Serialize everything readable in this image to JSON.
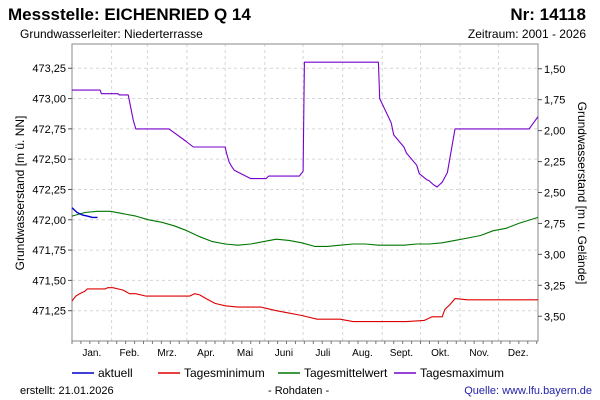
{
  "header": {
    "title": "Messstelle: EICHENRIED Q 14",
    "number": "Nr: 14118",
    "aquifer": "Grundwasserleiter:  Niederterrasse",
    "period": "Zeitraum: 2001 - 2026"
  },
  "footer": {
    "created": "erstellt:  21.01.2026",
    "status": "- Rohdaten -",
    "source": "Quelle: www.lfu.bayern.de"
  },
  "chart_data": {
    "type": "line",
    "ylabel": "Grundwasserstand [m ü. NN]",
    "ylabel_right": "Grundwasserstand [m u. Gelände]",
    "ylim": [
      471.0,
      473.45
    ],
    "ylim_right": [
      3.7,
      1.3
    ],
    "xlim": [
      0,
      365
    ],
    "yticks": [
      "473,25",
      "473,00",
      "472,75",
      "472,50",
      "472,25",
      "472,00",
      "471,75",
      "471,50",
      "471,25"
    ],
    "ytick_values": [
      473.25,
      473.0,
      472.75,
      472.5,
      472.25,
      472.0,
      471.75,
      471.5,
      471.25
    ],
    "yticks_right": [
      "1,50",
      "1,75",
      "2,00",
      "2,25",
      "2,50",
      "2,75",
      "3,00",
      "3,25",
      "3,50"
    ],
    "ytick_right_values": [
      1.5,
      1.75,
      2.0,
      2.25,
      2.5,
      2.75,
      3.0,
      3.25,
      3.5
    ],
    "months": [
      "Jan.",
      "Feb.",
      "Mrz.",
      "Apr.",
      "Mai",
      "Juni",
      "Juli",
      "Aug.",
      "Sept.",
      "Okt.",
      "Nov.",
      "Dez."
    ],
    "month_boundaries": [
      0,
      31,
      59,
      90,
      120,
      151,
      181,
      212,
      243,
      273,
      304,
      334,
      365
    ],
    "grid": true,
    "legend_position": "bottom",
    "series": [
      {
        "name": "aktuell",
        "color": "#0000cc",
        "x": [
          0,
          4,
          8,
          12,
          16,
          20
        ],
        "y": [
          472.1,
          472.06,
          472.04,
          472.03,
          472.02,
          472.02
        ]
      },
      {
        "name": "Tagesminimum",
        "color": "#dd0000",
        "x": [
          0,
          3,
          6,
          10,
          12,
          20,
          26,
          28,
          32,
          40,
          45,
          50,
          58,
          75,
          92,
          96,
          100,
          105,
          112,
          120,
          130,
          140,
          148,
          152,
          160,
          170,
          180,
          192,
          200,
          210,
          220,
          230,
          240,
          250,
          262,
          276,
          282,
          290,
          292,
          296,
          300,
          310,
          330,
          350,
          365
        ],
        "y": [
          471.33,
          471.37,
          471.39,
          471.41,
          471.43,
          471.43,
          471.43,
          471.44,
          471.44,
          471.42,
          471.39,
          471.39,
          471.37,
          471.37,
          471.37,
          471.39,
          471.38,
          471.35,
          471.31,
          471.29,
          471.28,
          471.28,
          471.28,
          471.27,
          471.25,
          471.23,
          471.21,
          471.18,
          471.18,
          471.18,
          471.16,
          471.16,
          471.16,
          471.16,
          471.16,
          471.17,
          471.2,
          471.2,
          471.26,
          471.3,
          471.35,
          471.34,
          471.34,
          471.34,
          471.34
        ]
      },
      {
        "name": "Tagesmittelwert",
        "color": "#007700",
        "x": [
          0,
          10,
          20,
          30,
          40,
          50,
          60,
          70,
          80,
          90,
          100,
          110,
          120,
          130,
          140,
          150,
          160,
          170,
          180,
          190,
          200,
          210,
          220,
          230,
          240,
          250,
          260,
          270,
          280,
          290,
          300,
          310,
          320,
          330,
          340,
          350,
          365
        ],
        "y": [
          472.03,
          472.06,
          472.07,
          472.07,
          472.05,
          472.03,
          472.0,
          471.98,
          471.95,
          471.91,
          471.86,
          471.82,
          471.8,
          471.79,
          471.8,
          471.82,
          471.84,
          471.83,
          471.81,
          471.78,
          471.78,
          471.79,
          471.8,
          471.8,
          471.79,
          471.79,
          471.79,
          471.8,
          471.8,
          471.81,
          471.83,
          471.85,
          471.87,
          471.91,
          471.93,
          471.97,
          472.02
        ]
      },
      {
        "name": "Tagesmaximum",
        "color": "#7700cc",
        "x": [
          0,
          4,
          6,
          20,
          22,
          23,
          29,
          36,
          37,
          44,
          48,
          50,
          58,
          68,
          76,
          89,
          95,
          97,
          98,
          110,
          120,
          121,
          123,
          125,
          127,
          140,
          150,
          152,
          154,
          157,
          161,
          165,
          167,
          170,
          173,
          176,
          178,
          181,
          182,
          184,
          186,
          190,
          194,
          199,
          205,
          210,
          216,
          218,
          220,
          230,
          240,
          241,
          250,
          252,
          260,
          262,
          270,
          272,
          278,
          280,
          283,
          286,
          290,
          294,
          300,
          303,
          305,
          308,
          315,
          320,
          323,
          328,
          340,
          350,
          355,
          358,
          365
        ],
        "y": [
          473.07,
          473.07,
          473.07,
          473.07,
          473.07,
          473.04,
          473.04,
          473.04,
          473.03,
          473.03,
          472.82,
          472.75,
          472.75,
          472.75,
          472.75,
          472.65,
          472.6,
          472.6,
          472.6,
          472.6,
          472.6,
          472.55,
          472.48,
          472.44,
          472.41,
          472.34,
          472.34,
          472.34,
          472.36,
          472.36,
          472.36,
          472.36,
          472.36,
          472.36,
          472.36,
          472.36,
          472.36,
          472.4,
          473.3,
          473.3,
          473.3,
          473.3,
          473.3,
          473.3,
          473.3,
          473.3,
          473.3,
          473.3,
          473.3,
          473.3,
          473.3,
          473.0,
          472.8,
          472.7,
          472.6,
          472.55,
          472.45,
          472.38,
          472.33,
          472.32,
          472.29,
          472.27,
          472.31,
          472.39,
          472.75,
          472.75,
          472.75,
          472.75,
          472.75,
          472.75,
          472.75,
          472.75,
          472.75,
          472.75,
          472.75,
          472.75,
          472.85
        ]
      }
    ]
  }
}
